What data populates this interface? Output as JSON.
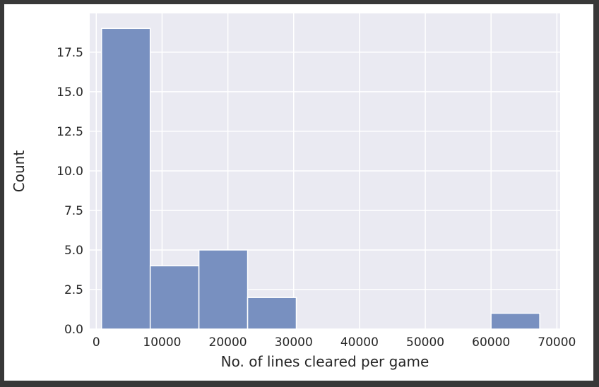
{
  "chart_data": {
    "type": "bar",
    "histogram": true,
    "title": "",
    "xlabel": "No. of lines cleared per game",
    "ylabel": "Count",
    "xlim": [
      -1000,
      70500
    ],
    "ylim": [
      0,
      19.95
    ],
    "xticks": [
      0,
      10000,
      20000,
      30000,
      40000,
      50000,
      60000,
      70000
    ],
    "xtick_labels": [
      "0",
      "10000",
      "20000",
      "30000",
      "40000",
      "50000",
      "60000",
      "70000"
    ],
    "yticks": [
      0,
      2.5,
      5,
      7.5,
      10,
      12.5,
      15,
      17.5
    ],
    "ytick_labels": [
      "0.0",
      "2.5",
      "5.0",
      "7.5",
      "10.0",
      "12.5",
      "15.0",
      "17.5"
    ],
    "bins": [
      {
        "x0": 800,
        "x1": 8200,
        "count": 19
      },
      {
        "x0": 8200,
        "x1": 15600,
        "count": 4
      },
      {
        "x0": 15600,
        "x1": 23000,
        "count": 5
      },
      {
        "x0": 23000,
        "x1": 30400,
        "count": 2
      },
      {
        "x0": 30400,
        "x1": 37800,
        "count": 0
      },
      {
        "x0": 37800,
        "x1": 45200,
        "count": 0
      },
      {
        "x0": 45200,
        "x1": 52600,
        "count": 0
      },
      {
        "x0": 52600,
        "x1": 60000,
        "count": 0
      },
      {
        "x0": 60000,
        "x1": 67400,
        "count": 1
      }
    ],
    "grid": true,
    "legend": false,
    "colors": {
      "bar_fill": "#7890C0",
      "bar_edge": "#FFFFFF",
      "plot_background": "#EAEAF2",
      "grid": "#FFFFFF",
      "text": "#262626"
    }
  }
}
